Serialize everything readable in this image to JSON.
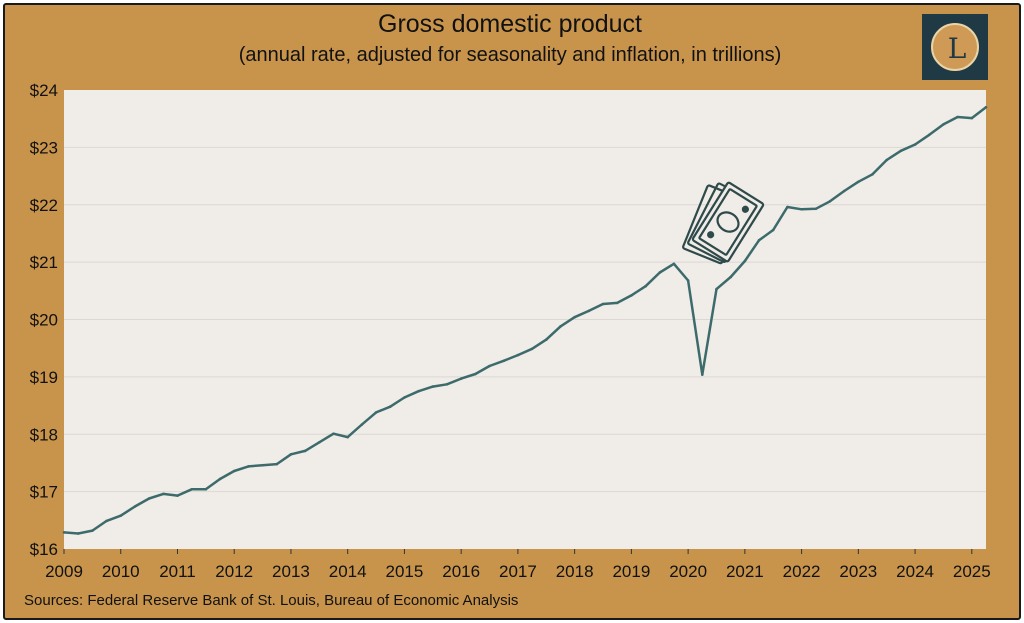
{
  "title": "Gross domestic product",
  "subtitle": "(annual rate, adjusted for seasonality and inflation, in trillions)",
  "logo_letter": "L",
  "source": "Sources: Federal Reserve Bank of St. Louis, Bureau of Economic Analysis",
  "colors": {
    "frame": "#c8944c",
    "plot_background": "#f0ece8",
    "line": "#3d6b6b",
    "logo_background": "#1f3a44"
  },
  "chart_data": {
    "type": "line",
    "title": "Gross domestic product",
    "subtitle": "(annual rate, adjusted for seasonality and inflation, in trillions)",
    "xlabel": "",
    "ylabel": "",
    "xlim": [
      2009,
      2025.25
    ],
    "ylim": [
      16,
      24
    ],
    "grid": true,
    "x_ticks": [
      "2009",
      "2010",
      "2011",
      "2012",
      "2013",
      "2014",
      "2015",
      "2016",
      "2017",
      "2018",
      "2019",
      "2020",
      "2021",
      "2022",
      "2023",
      "2024",
      "2025"
    ],
    "y_ticks": [
      "$16",
      "$17",
      "$18",
      "$19",
      "$20",
      "$21",
      "$22",
      "$23",
      "$24"
    ],
    "annotation_icon": "money-bills-icon",
    "series": [
      {
        "x": [
          2009.0,
          2009.25,
          2009.5,
          2009.75,
          2010.0,
          2010.25,
          2010.5,
          2010.75,
          2011.0,
          2011.25,
          2011.5,
          2011.75,
          2012.0,
          2012.25,
          2012.5,
          2012.75,
          2013.0,
          2013.25,
          2013.5,
          2013.75,
          2014.0,
          2014.25,
          2014.5,
          2014.75,
          2015.0,
          2015.25,
          2015.5,
          2015.75,
          2016.0,
          2016.25,
          2016.5,
          2016.75,
          2017.0,
          2017.25,
          2017.5,
          2017.75,
          2018.0,
          2018.25,
          2018.5,
          2018.75,
          2019.0,
          2019.25,
          2019.5,
          2019.75,
          2020.0,
          2020.25,
          2020.5,
          2020.75,
          2021.0,
          2021.25,
          2021.5,
          2021.75,
          2022.0,
          2022.25,
          2022.5,
          2022.75,
          2023.0,
          2023.25,
          2023.5,
          2023.75,
          2024.0,
          2024.25,
          2024.5,
          2024.75,
          2025.0,
          2025.25
        ],
        "values": [
          16.29,
          16.27,
          16.32,
          16.49,
          16.58,
          16.74,
          16.88,
          16.96,
          16.93,
          17.04,
          17.04,
          17.22,
          17.36,
          17.44,
          17.46,
          17.48,
          17.65,
          17.71,
          17.86,
          18.01,
          17.95,
          18.17,
          18.38,
          18.48,
          18.64,
          18.75,
          18.83,
          18.87,
          18.97,
          19.05,
          19.19,
          19.28,
          19.38,
          19.49,
          19.65,
          19.88,
          20.04,
          20.15,
          20.27,
          20.29,
          20.42,
          20.58,
          20.82,
          20.97,
          20.68,
          19.04,
          20.53,
          20.74,
          21.02,
          21.38,
          21.56,
          21.96,
          21.92,
          21.93,
          22.06,
          22.24,
          22.4,
          22.53,
          22.78,
          22.94,
          23.05,
          23.22,
          23.4,
          23.53,
          23.51,
          23.7
        ]
      }
    ]
  }
}
